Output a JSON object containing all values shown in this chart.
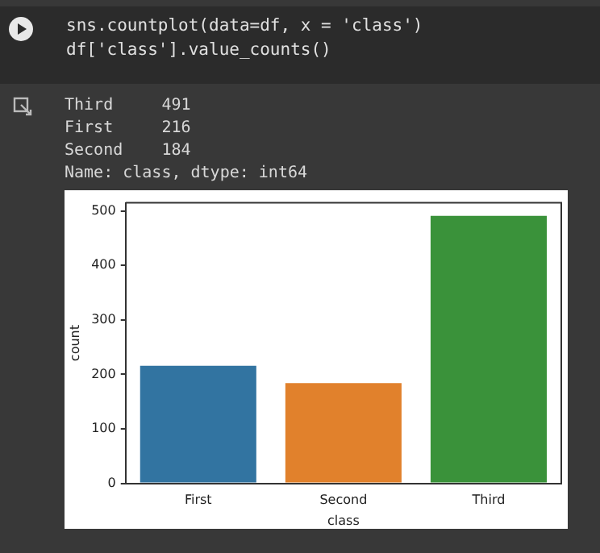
{
  "chart_data": {
    "type": "bar",
    "xlabel": "class",
    "ylabel": "count",
    "categories": [
      "First",
      "Second",
      "Third"
    ],
    "values": [
      216,
      184,
      491
    ],
    "colors": [
      "#3274a1",
      "#e1812c",
      "#3a923a"
    ],
    "ylim": [
      0,
      515
    ],
    "yticks": [
      0,
      100,
      200,
      300,
      400,
      500
    ],
    "grid": false,
    "legend": false,
    "annotations": [
      "sns.countplot(data=df, x = 'class')",
      "df['class'].value_counts()",
      "Third     491",
      "First     216",
      "Second    184",
      "Name: class, dtype: int64"
    ]
  }
}
